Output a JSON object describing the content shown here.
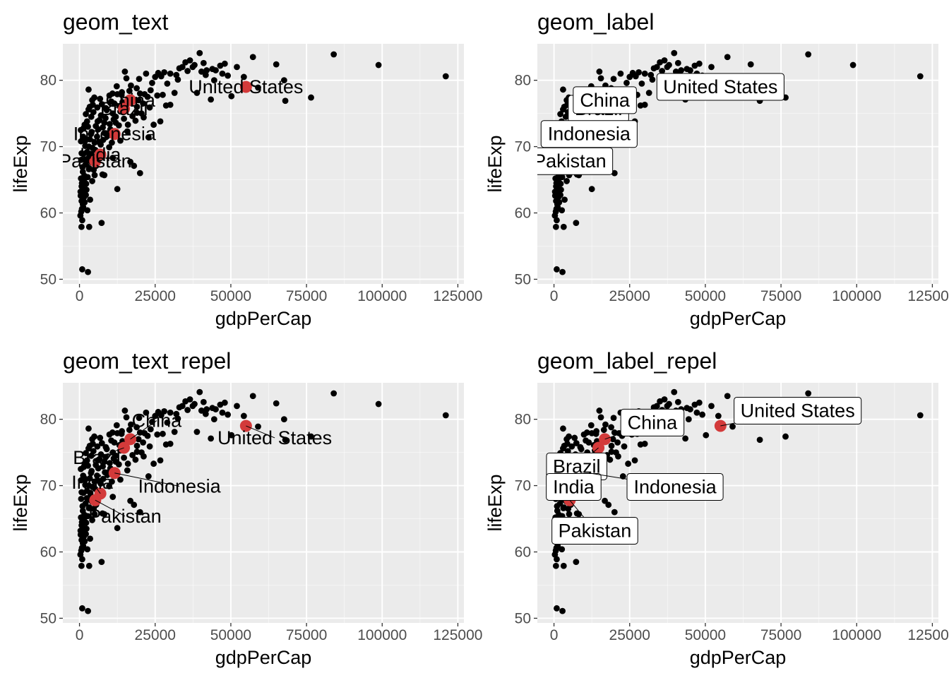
{
  "colors": {
    "panel_background": "#ebebeb",
    "grid_major": "#ffffff",
    "point": "#000000",
    "highlight": "#d33a3a",
    "label_box": "#ffffff",
    "tick_text": "#4d4d4d"
  },
  "chart_data": [
    {
      "type": "scatter",
      "title": "geom_text",
      "label_style": "text",
      "xlabel": "gdpPerCap",
      "ylabel": "lifeExp",
      "xlim": [
        -5500,
        127000
      ],
      "ylim": [
        49.3,
        85.5
      ],
      "xticks": [
        0,
        25000,
        50000,
        75000,
        100000,
        125000
      ],
      "xtick_labels": [
        "0",
        "25000",
        "50000",
        "75000",
        "100000",
        "125000"
      ],
      "yticks": [
        50,
        60,
        70,
        80
      ],
      "ytick_labels": [
        "50",
        "60",
        "70",
        "80"
      ],
      "labels": [
        {
          "text": "United States",
          "x": 55000,
          "y": 79.0
        },
        {
          "text": "China",
          "x": 16800,
          "y": 77.0
        },
        {
          "text": "Brazil",
          "x": 14700,
          "y": 75.7
        },
        {
          "text": "Indonesia",
          "x": 11600,
          "y": 71.9
        },
        {
          "text": "India",
          "x": 6900,
          "y": 68.8
        },
        {
          "text": "Pakistan",
          "x": 5200,
          "y": 67.8
        }
      ]
    },
    {
      "type": "scatter",
      "title": "geom_label",
      "label_style": "label",
      "xlabel": "gdpPerCap",
      "ylabel": "lifeExp",
      "xlim": [
        -5500,
        127000
      ],
      "ylim": [
        49.3,
        85.5
      ],
      "xticks": [
        0,
        25000,
        50000,
        75000,
        100000,
        125000
      ],
      "xtick_labels": [
        "0",
        "25000",
        "50000",
        "75000",
        "100000",
        "125000"
      ],
      "yticks": [
        50,
        60,
        70,
        80
      ],
      "ytick_labels": [
        "50",
        "60",
        "70",
        "80"
      ],
      "labels": [
        {
          "text": "Brazil",
          "x": 14700,
          "y": 75.7
        },
        {
          "text": "China",
          "x": 16800,
          "y": 77.0
        },
        {
          "text": "United States",
          "x": 55000,
          "y": 79.0
        },
        {
          "text": "Indonesia",
          "x": 11600,
          "y": 71.9
        },
        {
          "text": "Pakistan",
          "x": 5200,
          "y": 67.8
        }
      ]
    },
    {
      "type": "scatter",
      "title": "geom_text_repel",
      "label_style": "repel_text",
      "xlabel": "gdpPerCap",
      "ylabel": "lifeExp",
      "xlim": [
        -5500,
        127000
      ],
      "ylim": [
        49.3,
        85.5
      ],
      "xticks": [
        0,
        25000,
        50000,
        75000,
        100000,
        125000
      ],
      "xtick_labels": [
        "0",
        "25000",
        "50000",
        "75000",
        "100000",
        "125000"
      ],
      "yticks": [
        50,
        60,
        70,
        80
      ],
      "ytick_labels": [
        "50",
        "60",
        "70",
        "80"
      ],
      "labels": [
        {
          "text": "China",
          "x": 16800,
          "y": 77.0,
          "lx": 25500,
          "ly": 79.8
        },
        {
          "text": "United States",
          "x": 55000,
          "y": 79.0,
          "lx": 64500,
          "ly": 77.2
        },
        {
          "text": "Brazil",
          "x": 14700,
          "y": 75.7,
          "lx": 5700,
          "ly": 74.2
        },
        {
          "text": "India",
          "x": 6900,
          "y": 68.8,
          "lx": 4200,
          "ly": 70.5
        },
        {
          "text": "Indonesia",
          "x": 11600,
          "y": 71.9,
          "lx": 33000,
          "ly": 69.9
        },
        {
          "text": "Pakistan",
          "x": 5200,
          "y": 67.8,
          "lx": 15000,
          "ly": 65.4
        }
      ]
    },
    {
      "type": "scatter",
      "title": "geom_label_repel",
      "label_style": "repel_label",
      "xlabel": "gdpPerCap",
      "ylabel": "lifeExp",
      "xlim": [
        -5500,
        127000
      ],
      "ylim": [
        49.3,
        85.5
      ],
      "xticks": [
        0,
        25000,
        50000,
        75000,
        100000,
        125000
      ],
      "xtick_labels": [
        "0",
        "25000",
        "50000",
        "75000",
        "100000",
        "125000"
      ],
      "yticks": [
        50,
        60,
        70,
        80
      ],
      "ytick_labels": [
        "50",
        "60",
        "70",
        "80"
      ],
      "labels": [
        {
          "text": "United States",
          "x": 55000,
          "y": 79.0,
          "lx": 80500,
          "ly": 81.3
        },
        {
          "text": "China",
          "x": 16800,
          "y": 77.0,
          "lx": 32500,
          "ly": 79.5
        },
        {
          "text": "Brazil",
          "x": 14700,
          "y": 75.7,
          "lx": 7500,
          "ly": 72.9
        },
        {
          "text": "India",
          "x": 6900,
          "y": 68.8,
          "lx": 6500,
          "ly": 69.8
        },
        {
          "text": "Indonesia",
          "x": 11600,
          "y": 71.9,
          "lx": 40000,
          "ly": 69.8
        },
        {
          "text": "Pakistan",
          "x": 5200,
          "y": 67.8,
          "lx": 13500,
          "ly": 63.2
        }
      ]
    }
  ],
  "scatter_points": [
    [
      39700,
      84.1
    ],
    [
      84000,
      83.9
    ],
    [
      121000,
      80.6
    ],
    [
      98800,
      82.3
    ],
    [
      57300,
      83.5
    ],
    [
      65000,
      82.4
    ],
    [
      67600,
      80.0
    ],
    [
      68000,
      76.9
    ],
    [
      76500,
      77.4
    ],
    [
      52000,
      82.0
    ],
    [
      48000,
      82.5
    ],
    [
      46500,
      82.2
    ],
    [
      45000,
      81.5
    ],
    [
      44500,
      80.0
    ],
    [
      42000,
      81.5
    ],
    [
      41000,
      82.6
    ],
    [
      38000,
      82.3
    ],
    [
      36500,
      83.0
    ],
    [
      35000,
      82.7
    ],
    [
      34000,
      82.0
    ],
    [
      33000,
      81.8
    ],
    [
      32000,
      80.8
    ],
    [
      30000,
      81.0
    ],
    [
      29000,
      79.5
    ],
    [
      28000,
      81.2
    ],
    [
      27000,
      80.6
    ],
    [
      26000,
      81.1
    ],
    [
      25000,
      80.5
    ],
    [
      24000,
      79.6
    ],
    [
      23500,
      78.5
    ],
    [
      22500,
      77.5
    ],
    [
      21500,
      77.9
    ],
    [
      21000,
      76.5
    ],
    [
      20500,
      75.0
    ],
    [
      20000,
      78.0
    ],
    [
      19500,
      77.0
    ],
    [
      19000,
      76.0
    ],
    [
      18500,
      73.9
    ],
    [
      17500,
      74.6
    ],
    [
      17000,
      79.2
    ],
    [
      16500,
      78.4
    ],
    [
      15500,
      80.3
    ],
    [
      15000,
      81.3
    ],
    [
      14000,
      78.2
    ],
    [
      13500,
      75.3
    ],
    [
      13000,
      73.2
    ],
    [
      12500,
      77.9
    ],
    [
      12000,
      74.5
    ],
    [
      11500,
      76.5
    ],
    [
      11000,
      75.0
    ],
    [
      10500,
      76.8
    ],
    [
      10000,
      73.4
    ],
    [
      9500,
      72.0
    ],
    [
      9000,
      75.5
    ],
    [
      8600,
      74.3
    ],
    [
      8200,
      73.6
    ],
    [
      7800,
      71.0
    ],
    [
      7400,
      76.4
    ],
    [
      7000,
      70.3
    ],
    [
      6600,
      74.0
    ],
    [
      6200,
      72.6
    ],
    [
      5800,
      71.5
    ],
    [
      5400,
      73.1
    ],
    [
      5000,
      70.6
    ],
    [
      4600,
      75.2
    ],
    [
      4300,
      69.8
    ],
    [
      4000,
      72.2
    ],
    [
      3700,
      68.5
    ],
    [
      3400,
      71.1
    ],
    [
      3100,
      66.6
    ],
    [
      2800,
      73.0
    ],
    [
      2500,
      69.2
    ],
    [
      2200,
      64.4
    ],
    [
      2000,
      67.3
    ],
    [
      1800,
      70.8
    ],
    [
      1600,
      65.6
    ],
    [
      1400,
      62.3
    ],
    [
      1300,
      68.9
    ],
    [
      1200,
      60.9
    ],
    [
      1100,
      66.2
    ],
    [
      1000,
      63.8
    ],
    [
      900,
      58.9
    ],
    [
      800,
      64.5
    ],
    [
      700,
      61.8
    ],
    [
      650,
      57.9
    ],
    [
      600,
      60.2
    ],
    [
      550,
      68.0
    ],
    [
      500,
      65.2
    ],
    [
      450,
      72.5
    ],
    [
      400,
      62.6
    ],
    [
      350,
      63.2
    ],
    [
      300,
      59.6
    ],
    [
      900,
      51.5
    ],
    [
      2800,
      51.1
    ],
    [
      3200,
      57.9
    ],
    [
      2600,
      60.4
    ],
    [
      3500,
      62.0
    ],
    [
      4200,
      64.8
    ],
    [
      5000,
      65.7
    ],
    [
      8200,
      65.7
    ],
    [
      7300,
      58.5
    ],
    [
      12500,
      63.6
    ],
    [
      16800,
      67.7
    ],
    [
      20000,
      66.0
    ],
    [
      18000,
      67.1
    ],
    [
      11000,
      68.3
    ],
    [
      9800,
      69.9
    ],
    [
      13500,
      70.9
    ],
    [
      15800,
      72.3
    ],
    [
      22800,
      71.4
    ],
    [
      24500,
      73.3
    ],
    [
      26700,
      73.8
    ],
    [
      25700,
      77.7
    ],
    [
      30000,
      76.3
    ],
    [
      31400,
      78.1
    ],
    [
      38800,
      78.1
    ],
    [
      43400,
      77.1
    ],
    [
      50200,
      77.6
    ],
    [
      54300,
      80.5
    ],
    [
      59000,
      78.9
    ],
    [
      3000,
      78.6
    ],
    [
      4400,
      76.3
    ],
    [
      5900,
      75.9
    ],
    [
      6800,
      77.2
    ],
    [
      8700,
      75.8
    ],
    [
      9900,
      77.7
    ],
    [
      10900,
      78.0
    ],
    [
      12300,
      79.1
    ],
    [
      13900,
      77.8
    ],
    [
      18900,
      78.8
    ],
    [
      19700,
      80.2
    ],
    [
      22000,
      81.0
    ],
    [
      23200,
      75.9
    ],
    [
      27500,
      77.8
    ],
    [
      28600,
      76.2
    ],
    [
      32500,
      80.1
    ],
    [
      35700,
      81.4
    ],
    [
      37400,
      82.0
    ],
    [
      40300,
      81.3
    ],
    [
      41700,
      80.8
    ],
    [
      43900,
      81.7
    ],
    [
      47200,
      81.0
    ],
    [
      49000,
      80.7
    ],
    [
      1500,
      71.2
    ],
    [
      1900,
      70.1
    ],
    [
      2400,
      68.1
    ],
    [
      2900,
      67.9
    ],
    [
      3300,
      66.7
    ],
    [
      3800,
      71.9
    ],
    [
      4500,
      68.2
    ],
    [
      5200,
      69.5
    ],
    [
      6000,
      73.8
    ],
    [
      6400,
      70.7
    ],
    [
      7100,
      74.7
    ],
    [
      7700,
      72.9
    ],
    [
      8400,
      72.0
    ],
    [
      9200,
      71.6
    ],
    [
      10200,
      72.6
    ],
    [
      10700,
      70.6
    ],
    [
      11300,
      74.1
    ],
    [
      12000,
      73.6
    ],
    [
      13200,
      76.1
    ],
    [
      14200,
      76.7
    ],
    [
      14700,
      74.2
    ],
    [
      16000,
      73.3
    ],
    [
      17800,
      76.9
    ],
    [
      19000,
      75.1
    ],
    [
      21200,
      74.4
    ],
    [
      600,
      62.9
    ],
    [
      700,
      64.0
    ],
    [
      800,
      60.6
    ],
    [
      1000,
      66.9
    ],
    [
      1100,
      61.3
    ],
    [
      1300,
      63.0
    ],
    [
      1500,
      65.0
    ],
    [
      1700,
      61.6
    ],
    [
      2100,
      62.7
    ],
    [
      2300,
      63.5
    ],
    [
      2700,
      65.4
    ],
    [
      3100,
      70.0
    ],
    [
      3600,
      68.9
    ],
    [
      4100,
      67.6
    ],
    [
      4700,
      66.5
    ],
    [
      5500,
      67.1
    ],
    [
      7600,
      65.8
    ],
    [
      500,
      70.8
    ],
    [
      700,
      69.0
    ],
    [
      1200,
      71.5
    ],
    [
      1400,
      72.8
    ],
    [
      1700,
      73.3
    ],
    [
      2100,
      74.9
    ],
    [
      2500,
      73.8
    ],
    [
      3000,
      75.6
    ],
    [
      3400,
      76.0
    ],
    [
      3900,
      74.5
    ],
    [
      4200,
      77.0
    ],
    [
      4900,
      77.4
    ]
  ]
}
